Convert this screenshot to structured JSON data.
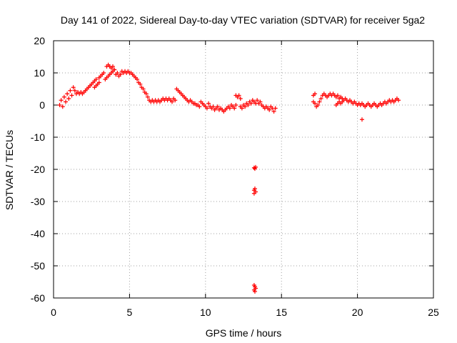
{
  "chart_data": {
    "type": "scatter",
    "title": "Day 141 of 2022, Sidereal Day-to-day VTEC variation (SDTVAR) for receiver 5ga2",
    "xlabel": "GPS time / hours",
    "ylabel": "SDTVAR / TECUs",
    "xlim": [
      0,
      25
    ],
    "ylim": [
      -60,
      20
    ],
    "xticks": [
      0,
      5,
      10,
      15,
      20,
      25
    ],
    "yticks": [
      20,
      10,
      0,
      -10,
      -20,
      -30,
      -40,
      -50,
      -60
    ],
    "grid": true,
    "marker": "+",
    "color": "#ff0000",
    "series": [
      {
        "name": "SDTVAR",
        "points": [
          [
            0.4,
            0.0
          ],
          [
            0.5,
            1.5
          ],
          [
            0.6,
            -0.5
          ],
          [
            0.7,
            2.5
          ],
          [
            0.8,
            1.0
          ],
          [
            0.9,
            3.5
          ],
          [
            1.0,
            2.0
          ],
          [
            1.1,
            4.5
          ],
          [
            1.2,
            3.0
          ],
          [
            1.3,
            5.5
          ],
          [
            1.4,
            4.5
          ],
          [
            1.5,
            3.5
          ],
          [
            1.6,
            4.0
          ],
          [
            1.7,
            3.5
          ],
          [
            1.8,
            4.0
          ],
          [
            1.9,
            3.5
          ],
          [
            2.0,
            4.0
          ],
          [
            2.1,
            4.5
          ],
          [
            2.2,
            5.0
          ],
          [
            2.3,
            5.5
          ],
          [
            2.4,
            6.0
          ],
          [
            2.5,
            6.5
          ],
          [
            2.6,
            7.0
          ],
          [
            2.7,
            7.5
          ],
          [
            2.8,
            8.0
          ],
          [
            2.7,
            5.5
          ],
          [
            2.8,
            6.0
          ],
          [
            2.9,
            6.5
          ],
          [
            3.0,
            7.0
          ],
          [
            3.0,
            8.5
          ],
          [
            3.1,
            9.0
          ],
          [
            3.2,
            9.5
          ],
          [
            3.3,
            10.0
          ],
          [
            3.4,
            8.0
          ],
          [
            3.5,
            8.5
          ],
          [
            3.6,
            9.0
          ],
          [
            3.7,
            9.5
          ],
          [
            3.8,
            10.0
          ],
          [
            3.9,
            10.5
          ],
          [
            4.0,
            11.0
          ],
          [
            3.5,
            12.0
          ],
          [
            3.6,
            12.5
          ],
          [
            3.7,
            12.0
          ],
          [
            3.8,
            11.5
          ],
          [
            3.9,
            12.0
          ],
          [
            4.0,
            11.0
          ],
          [
            4.1,
            9.5
          ],
          [
            4.2,
            10.0
          ],
          [
            4.3,
            9.0
          ],
          [
            4.4,
            9.5
          ],
          [
            4.5,
            10.5
          ],
          [
            4.6,
            10.0
          ],
          [
            4.7,
            10.5
          ],
          [
            4.8,
            10.0
          ],
          [
            4.9,
            10.5
          ],
          [
            5.0,
            10.0
          ],
          [
            5.1,
            10.0
          ],
          [
            5.2,
            9.5
          ],
          [
            5.3,
            9.0
          ],
          [
            5.4,
            8.5
          ],
          [
            5.5,
            8.0
          ],
          [
            5.6,
            7.0
          ],
          [
            5.7,
            6.5
          ],
          [
            5.8,
            5.5
          ],
          [
            5.9,
            5.0
          ],
          [
            6.0,
            4.0
          ],
          [
            6.1,
            3.5
          ],
          [
            6.2,
            2.5
          ],
          [
            6.3,
            1.5
          ],
          [
            6.4,
            1.0
          ],
          [
            6.5,
            1.5
          ],
          [
            6.6,
            1.0
          ],
          [
            6.7,
            1.5
          ],
          [
            6.8,
            1.0
          ],
          [
            6.9,
            1.5
          ],
          [
            7.0,
            1.0
          ],
          [
            7.1,
            1.5
          ],
          [
            7.2,
            2.0
          ],
          [
            7.3,
            1.5
          ],
          [
            7.4,
            2.0
          ],
          [
            7.5,
            1.5
          ],
          [
            7.6,
            2.0
          ],
          [
            7.7,
            1.5
          ],
          [
            7.8,
            1.0
          ],
          [
            7.9,
            2.0
          ],
          [
            8.0,
            1.5
          ],
          [
            8.1,
            5.0
          ],
          [
            8.2,
            4.5
          ],
          [
            8.3,
            4.0
          ],
          [
            8.4,
            3.5
          ],
          [
            8.5,
            3.0
          ],
          [
            8.6,
            2.5
          ],
          [
            8.7,
            2.0
          ],
          [
            8.8,
            1.5
          ],
          [
            8.9,
            1.0
          ],
          [
            9.0,
            1.5
          ],
          [
            9.1,
            1.0
          ],
          [
            9.2,
            0.5
          ],
          [
            9.3,
            0.5
          ],
          [
            9.4,
            0.0
          ],
          [
            9.5,
            0.0
          ],
          [
            9.6,
            -0.5
          ],
          [
            9.7,
            1.0
          ],
          [
            9.8,
            0.5
          ],
          [
            9.9,
            0.0
          ],
          [
            10.0,
            -0.5
          ],
          [
            10.1,
            -1.0
          ],
          [
            10.2,
            0.5
          ],
          [
            10.3,
            -0.5
          ],
          [
            10.4,
            -1.0
          ],
          [
            10.5,
            -0.5
          ],
          [
            10.6,
            -1.5
          ],
          [
            10.7,
            -1.0
          ],
          [
            10.8,
            -0.5
          ],
          [
            10.9,
            -1.5
          ],
          [
            11.0,
            -1.0
          ],
          [
            11.1,
            -1.5
          ],
          [
            11.2,
            -2.0
          ],
          [
            11.3,
            -1.5
          ],
          [
            11.4,
            -1.0
          ],
          [
            11.5,
            -0.5
          ],
          [
            11.6,
            -1.0
          ],
          [
            11.7,
            0.0
          ],
          [
            11.8,
            -0.5
          ],
          [
            11.9,
            -1.0
          ],
          [
            12.0,
            0.0
          ],
          [
            12.0,
            3.0
          ],
          [
            12.1,
            2.5
          ],
          [
            12.2,
            3.0
          ],
          [
            12.3,
            2.0
          ],
          [
            12.3,
            -0.5
          ],
          [
            12.4,
            -1.0
          ],
          [
            12.5,
            0.0
          ],
          [
            12.6,
            -0.5
          ],
          [
            12.7,
            0.5
          ],
          [
            12.8,
            0.0
          ],
          [
            12.9,
            1.0
          ],
          [
            13.0,
            0.5
          ],
          [
            13.1,
            1.5
          ],
          [
            13.2,
            1.0
          ],
          [
            13.3,
            0.5
          ],
          [
            13.4,
            1.5
          ],
          [
            13.5,
            0.5
          ],
          [
            13.6,
            1.0
          ],
          [
            13.7,
            0.0
          ],
          [
            13.8,
            -0.5
          ],
          [
            13.9,
            -1.0
          ],
          [
            14.0,
            -0.5
          ],
          [
            14.1,
            -1.0
          ],
          [
            14.2,
            -1.5
          ],
          [
            14.3,
            -0.5
          ],
          [
            14.4,
            -1.0
          ],
          [
            14.5,
            -2.0
          ],
          [
            14.6,
            -1.0
          ],
          [
            13.2,
            -19.5
          ],
          [
            13.25,
            -19.8
          ],
          [
            13.3,
            -19.3
          ],
          [
            13.2,
            -26.5
          ],
          [
            13.25,
            -26.0
          ],
          [
            13.3,
            -27.0
          ],
          [
            13.2,
            -27.5
          ],
          [
            13.2,
            -56.0
          ],
          [
            13.25,
            -56.5
          ],
          [
            13.3,
            -57.0
          ],
          [
            13.2,
            -57.5
          ],
          [
            13.25,
            -58.0
          ],
          [
            17.1,
            3.0
          ],
          [
            17.2,
            3.5
          ],
          [
            17.1,
            1.0
          ],
          [
            17.2,
            0.5
          ],
          [
            17.3,
            -0.5
          ],
          [
            17.4,
            0.0
          ],
          [
            17.5,
            1.0
          ],
          [
            17.6,
            2.0
          ],
          [
            17.7,
            3.0
          ],
          [
            17.8,
            3.5
          ],
          [
            17.9,
            3.0
          ],
          [
            18.0,
            2.5
          ],
          [
            18.1,
            3.0
          ],
          [
            18.2,
            3.5
          ],
          [
            18.3,
            3.0
          ],
          [
            18.4,
            3.5
          ],
          [
            18.5,
            3.0
          ],
          [
            18.6,
            2.5
          ],
          [
            18.7,
            3.0
          ],
          [
            18.8,
            2.0
          ],
          [
            18.9,
            2.5
          ],
          [
            19.0,
            2.0
          ],
          [
            19.1,
            1.5
          ],
          [
            19.2,
            2.0
          ],
          [
            19.3,
            1.5
          ],
          [
            18.6,
            0.0
          ],
          [
            18.7,
            0.5
          ],
          [
            18.8,
            1.0
          ],
          [
            18.9,
            0.5
          ],
          [
            19.0,
            1.0
          ],
          [
            19.4,
            1.0
          ],
          [
            19.5,
            1.5
          ],
          [
            19.6,
            1.0
          ],
          [
            19.7,
            0.5
          ],
          [
            19.8,
            1.0
          ],
          [
            19.9,
            0.5
          ],
          [
            20.0,
            0.0
          ],
          [
            20.1,
            0.5
          ],
          [
            20.2,
            0.0
          ],
          [
            20.3,
            0.5
          ],
          [
            20.4,
            0.0
          ],
          [
            20.5,
            -0.5
          ],
          [
            20.6,
            0.0
          ],
          [
            20.7,
            0.5
          ],
          [
            20.8,
            0.0
          ],
          [
            20.9,
            -0.5
          ],
          [
            21.0,
            0.0
          ],
          [
            21.1,
            0.5
          ],
          [
            21.2,
            0.0
          ],
          [
            21.3,
            -0.5
          ],
          [
            21.4,
            0.0
          ],
          [
            21.5,
            0.5
          ],
          [
            21.6,
            0.0
          ],
          [
            21.7,
            0.5
          ],
          [
            21.8,
            1.0
          ],
          [
            21.9,
            0.5
          ],
          [
            22.0,
            1.0
          ],
          [
            22.1,
            1.5
          ],
          [
            22.2,
            1.0
          ],
          [
            22.3,
            1.5
          ],
          [
            22.4,
            1.0
          ],
          [
            22.5,
            1.5
          ],
          [
            22.6,
            2.0
          ],
          [
            22.7,
            1.5
          ],
          [
            20.3,
            -4.5
          ]
        ]
      }
    ]
  }
}
